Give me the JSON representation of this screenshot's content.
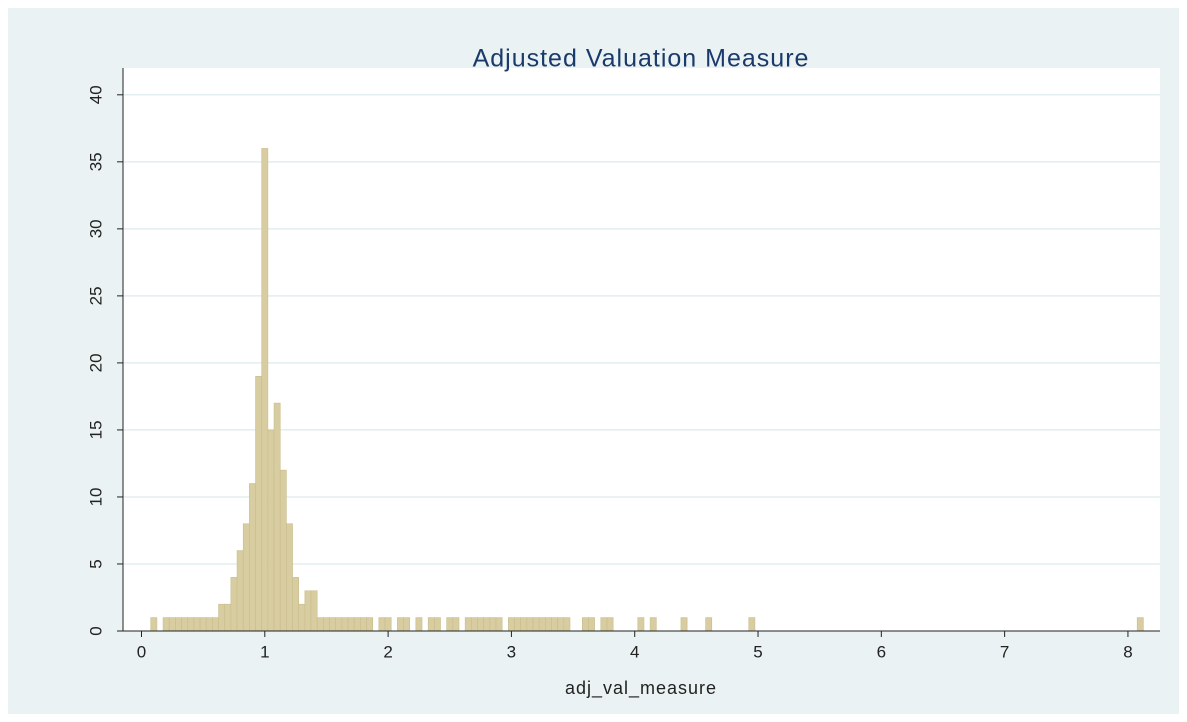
{
  "chart_data": {
    "type": "histogram",
    "title": "Adjusted Valuation Measure",
    "x_label": "adj_val_measure",
    "color": "#d8cda0",
    "grid": true,
    "xlim": [
      -0.15,
      8.26
    ],
    "ylim": [
      0,
      42
    ],
    "xticks": [
      0,
      1,
      2,
      3,
      4,
      5,
      6,
      7,
      8
    ],
    "yticks": [
      0,
      5,
      10,
      15,
      20,
      25,
      30,
      35,
      40
    ],
    "bins": [
      0.075,
      0.125,
      0.175,
      0.225,
      0.275,
      0.325,
      0.375,
      0.425,
      0.475,
      0.525,
      0.575,
      0.625,
      0.675,
      0.725,
      0.775,
      0.825,
      0.875,
      0.925,
      0.975,
      1.025,
      1.075,
      1.125,
      1.175,
      1.225,
      1.275,
      1.325,
      1.375,
      1.425,
      1.475,
      1.525,
      1.575,
      1.625,
      1.675,
      1.725,
      1.775,
      1.825,
      1.875,
      1.925,
      1.975,
      2.025,
      2.075,
      2.125,
      2.175,
      2.225,
      2.275,
      2.325,
      2.375,
      2.425,
      2.475,
      2.525,
      2.575,
      2.625,
      2.675,
      2.725,
      2.775,
      2.825,
      2.875,
      2.925,
      2.975,
      3.025,
      3.075,
      3.125,
      3.175,
      3.225,
      3.275,
      3.325,
      3.375,
      3.425,
      3.475,
      3.525,
      3.575,
      3.625,
      3.675,
      3.725,
      3.775,
      3.825,
      3.875,
      3.925,
      3.975,
      4.025,
      4.075,
      4.125,
      4.175,
      4.225,
      4.275,
      4.325,
      4.375,
      4.425,
      4.475,
      4.525,
      4.575,
      4.625,
      4.675,
      4.725,
      4.775,
      4.825,
      4.875,
      4.925,
      4.975,
      5.025,
      5.075,
      5.125,
      5.175,
      5.225,
      5.275,
      5.325,
      5.375,
      5.425,
      5.475,
      5.525,
      5.575,
      5.625,
      5.675,
      5.725,
      5.775,
      5.825,
      5.875,
      5.925,
      5.975,
      6.025,
      6.075,
      6.125,
      6.175,
      6.225,
      6.275,
      6.325,
      6.375,
      6.425,
      6.475,
      6.525,
      6.575,
      6.625,
      6.675,
      6.725,
      6.775,
      6.825,
      6.875,
      6.925,
      6.975,
      7.025,
      7.075,
      7.125,
      7.175,
      7.225,
      7.275,
      7.325,
      7.375,
      7.425,
      7.475,
      7.525,
      7.575,
      7.625,
      7.675,
      7.725,
      7.775,
      7.825,
      7.875,
      7.925,
      7.975,
      8.025,
      8.075,
      8.125
    ],
    "values": [
      1,
      0,
      1,
      1,
      1,
      1,
      1,
      1,
      1,
      1,
      1,
      2,
      2,
      4,
      6,
      8,
      11,
      19,
      36,
      15,
      17,
      12,
      8,
      4,
      2,
      3,
      3,
      1,
      1,
      1,
      1,
      1,
      1,
      1,
      1,
      1,
      0,
      1,
      1,
      0,
      1,
      1,
      0,
      1,
      0,
      1,
      1,
      0,
      1,
      1,
      0,
      1,
      1,
      1,
      1,
      1,
      1,
      0,
      1,
      1,
      1,
      1,
      1,
      1,
      1,
      1,
      1,
      1,
      0,
      0,
      1,
      1,
      0,
      1,
      1,
      0,
      0,
      0,
      0,
      1,
      0,
      1,
      0,
      0,
      0,
      0,
      1,
      0,
      0,
      0,
      1,
      0,
      0,
      0,
      0,
      0,
      0,
      1,
      0,
      0,
      0,
      0,
      0,
      0,
      0,
      0,
      0,
      0,
      0,
      0,
      0,
      0,
      0,
      0,
      0,
      0,
      0,
      0,
      0,
      0,
      0,
      0,
      0,
      0,
      0,
      0,
      0,
      0,
      0,
      0,
      0,
      0,
      0,
      0,
      0,
      0,
      0,
      0,
      0,
      0,
      0,
      0,
      0,
      0,
      0,
      0,
      0,
      0,
      0,
      0,
      0,
      0,
      0,
      0,
      0,
      0,
      0,
      0,
      0,
      0,
      1
    ]
  }
}
